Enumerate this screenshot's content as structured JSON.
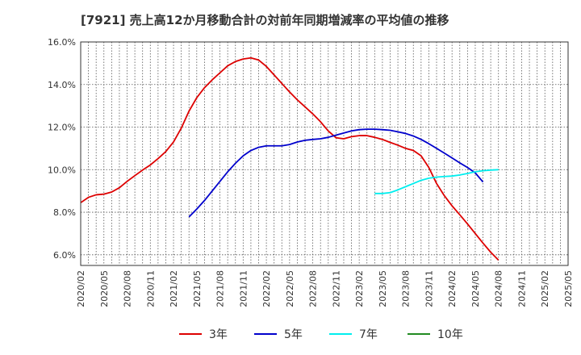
{
  "chart_data": {
    "type": "line",
    "title": "[7921]  売上高12か月移動合計の対前年同期増減率の平均値の推移",
    "xlabel": "",
    "ylabel": "",
    "ylim": [
      5.5,
      16.0
    ],
    "yticks": [
      6.0,
      8.0,
      10.0,
      12.0,
      14.0,
      16.0
    ],
    "ytick_labels": [
      "6.0%",
      "8.0%",
      "10.0%",
      "12.0%",
      "14.0%",
      "16.0%"
    ],
    "xlim": [
      "2020-02",
      "2025-05"
    ],
    "xtick_labels": [
      "2020/02",
      "2020/05",
      "2020/08",
      "2020/11",
      "2021/02",
      "2021/05",
      "2021/08",
      "2021/11",
      "2022/02",
      "2022/05",
      "2022/08",
      "2022/11",
      "2023/02",
      "2023/05",
      "2023/08",
      "2023/11",
      "2024/02",
      "2024/05",
      "2024/08",
      "2024/11",
      "2025/02",
      "2025/05"
    ],
    "grid": true,
    "legend_position": "bottom",
    "series": [
      {
        "name": "3年",
        "color": "#dd0000",
        "points": [
          [
            "2020-02",
            8.45
          ],
          [
            "2020-03",
            8.7
          ],
          [
            "2020-04",
            8.82
          ],
          [
            "2020-05",
            8.85
          ],
          [
            "2020-06",
            8.95
          ],
          [
            "2020-07",
            9.15
          ],
          [
            "2020-08",
            9.45
          ],
          [
            "2020-09",
            9.72
          ],
          [
            "2020-10",
            9.98
          ],
          [
            "2020-11",
            10.22
          ],
          [
            "2020-12",
            10.52
          ],
          [
            "2021-01",
            10.85
          ],
          [
            "2021-02",
            11.3
          ],
          [
            "2021-03",
            11.95
          ],
          [
            "2021-04",
            12.75
          ],
          [
            "2021-05",
            13.38
          ],
          [
            "2021-06",
            13.85
          ],
          [
            "2021-07",
            14.22
          ],
          [
            "2021-08",
            14.55
          ],
          [
            "2021-09",
            14.88
          ],
          [
            "2021-10",
            15.08
          ],
          [
            "2021-11",
            15.2
          ],
          [
            "2021-12",
            15.25
          ],
          [
            "2022-01",
            15.15
          ],
          [
            "2022-02",
            14.85
          ],
          [
            "2022-03",
            14.45
          ],
          [
            "2022-04",
            14.05
          ],
          [
            "2022-05",
            13.65
          ],
          [
            "2022-06",
            13.28
          ],
          [
            "2022-07",
            12.95
          ],
          [
            "2022-08",
            12.62
          ],
          [
            "2022-09",
            12.25
          ],
          [
            "2022-10",
            11.82
          ],
          [
            "2022-11",
            11.5
          ],
          [
            "2022-12",
            11.45
          ],
          [
            "2023-01",
            11.55
          ],
          [
            "2023-02",
            11.6
          ],
          [
            "2023-03",
            11.6
          ],
          [
            "2023-04",
            11.52
          ],
          [
            "2023-05",
            11.42
          ],
          [
            "2023-06",
            11.28
          ],
          [
            "2023-07",
            11.15
          ],
          [
            "2023-08",
            11.0
          ],
          [
            "2023-09",
            10.9
          ],
          [
            "2023-10",
            10.65
          ],
          [
            "2023-11",
            10.1
          ],
          [
            "2023-12",
            9.35
          ],
          [
            "2024-01",
            8.78
          ],
          [
            "2024-02",
            8.3
          ],
          [
            "2024-03",
            7.88
          ],
          [
            "2024-04",
            7.45
          ],
          [
            "2024-05",
            7.0
          ],
          [
            "2024-06",
            6.55
          ],
          [
            "2024-07",
            6.12
          ],
          [
            "2024-08",
            5.75
          ]
        ]
      },
      {
        "name": "5年",
        "color": "#0000cc",
        "points": [
          [
            "2021-04",
            7.78
          ],
          [
            "2021-05",
            8.15
          ],
          [
            "2021-06",
            8.55
          ],
          [
            "2021-07",
            9.0
          ],
          [
            "2021-08",
            9.45
          ],
          [
            "2021-09",
            9.9
          ],
          [
            "2021-10",
            10.3
          ],
          [
            "2021-11",
            10.65
          ],
          [
            "2021-12",
            10.9
          ],
          [
            "2022-01",
            11.05
          ],
          [
            "2022-02",
            11.12
          ],
          [
            "2022-03",
            11.12
          ],
          [
            "2022-04",
            11.12
          ],
          [
            "2022-05",
            11.18
          ],
          [
            "2022-06",
            11.3
          ],
          [
            "2022-07",
            11.38
          ],
          [
            "2022-08",
            11.42
          ],
          [
            "2022-09",
            11.45
          ],
          [
            "2022-10",
            11.52
          ],
          [
            "2022-11",
            11.62
          ],
          [
            "2022-12",
            11.72
          ],
          [
            "2023-01",
            11.82
          ],
          [
            "2023-02",
            11.88
          ],
          [
            "2023-03",
            11.9
          ],
          [
            "2023-04",
            11.9
          ],
          [
            "2023-05",
            11.88
          ],
          [
            "2023-06",
            11.85
          ],
          [
            "2023-07",
            11.78
          ],
          [
            "2023-08",
            11.7
          ],
          [
            "2023-09",
            11.58
          ],
          [
            "2023-10",
            11.42
          ],
          [
            "2023-11",
            11.22
          ],
          [
            "2023-12",
            11.0
          ],
          [
            "2024-01",
            10.78
          ],
          [
            "2024-02",
            10.55
          ],
          [
            "2024-03",
            10.32
          ],
          [
            "2024-04",
            10.1
          ],
          [
            "2024-05",
            9.85
          ],
          [
            "2024-06",
            9.42
          ]
        ]
      },
      {
        "name": "7年",
        "color": "#00eeee",
        "points": [
          [
            "2023-04",
            8.88
          ],
          [
            "2023-05",
            8.88
          ],
          [
            "2023-06",
            8.92
          ],
          [
            "2023-07",
            9.05
          ],
          [
            "2023-08",
            9.2
          ],
          [
            "2023-09",
            9.35
          ],
          [
            "2023-10",
            9.5
          ],
          [
            "2023-11",
            9.6
          ],
          [
            "2023-12",
            9.65
          ],
          [
            "2024-01",
            9.68
          ],
          [
            "2024-02",
            9.7
          ],
          [
            "2024-03",
            9.75
          ],
          [
            "2024-04",
            9.82
          ],
          [
            "2024-05",
            9.9
          ],
          [
            "2024-06",
            9.95
          ],
          [
            "2024-07",
            9.98
          ],
          [
            "2024-08",
            10.0
          ]
        ]
      },
      {
        "name": "10年",
        "color": "#228b22",
        "points": []
      }
    ]
  }
}
